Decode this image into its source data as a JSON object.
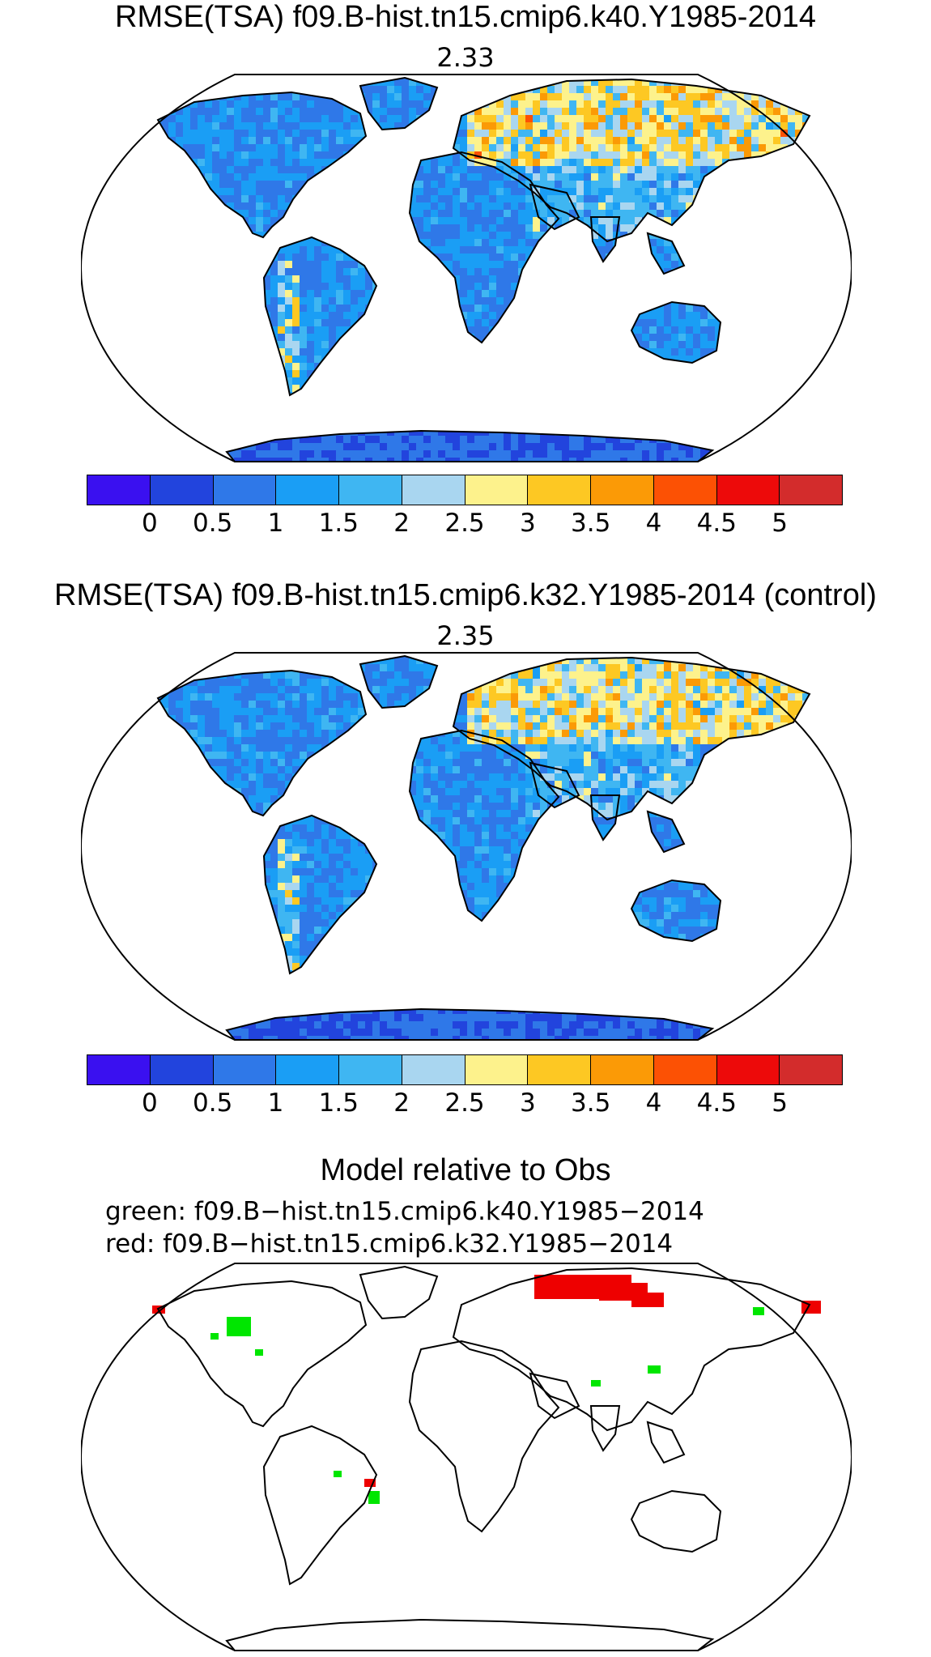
{
  "panel1": {
    "title": "RMSE(TSA) f09.B-hist.tn15.cmip6.k40.Y1985-2014",
    "global_value": "2.33"
  },
  "panel2": {
    "title": "RMSE(TSA) f09.B-hist.tn15.cmip6.k32.Y1985-2014 (control)",
    "global_value": "2.35"
  },
  "colorbar": {
    "colors": [
      "#3a10f0",
      "#2244dd",
      "#2f78e8",
      "#1a9ef5",
      "#3fb6f2",
      "#a9d6f0",
      "#fdf28c",
      "#fdc823",
      "#fb9a06",
      "#fc5104",
      "#ed0a0a",
      "#d32c2c"
    ],
    "tick_labels": [
      "0",
      "0.5",
      "1",
      "1.5",
      "2",
      "2.5",
      "3",
      "3.5",
      "4",
      "4.5",
      "5"
    ]
  },
  "panel3": {
    "title": "Model relative to Obs",
    "legend_green": "green: f09.B−hist.tn15.cmip6.k40.Y1985−2014",
    "legend_red": "red: f09.B−hist.tn15.cmip6.k32.Y1985−2014",
    "colors": {
      "green": "#00e600",
      "red": "#ee0000"
    }
  }
}
